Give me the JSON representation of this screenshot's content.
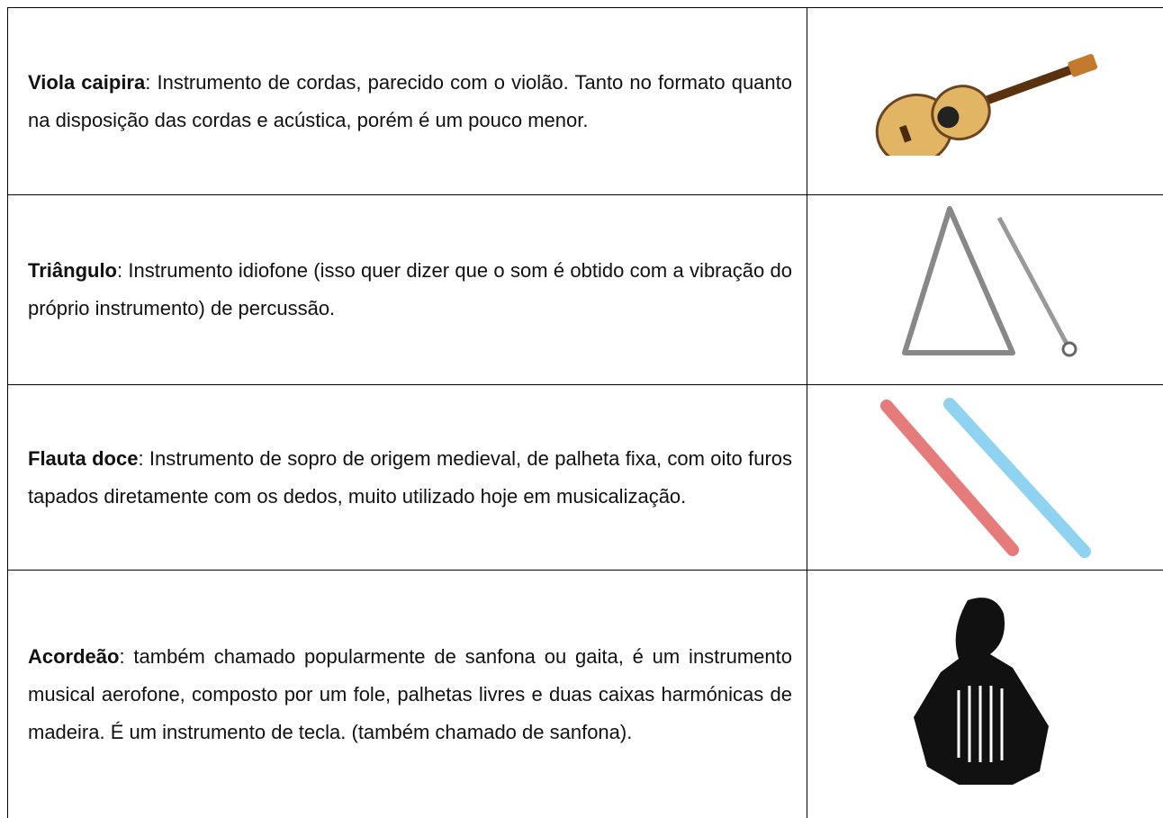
{
  "table": {
    "rows": [
      {
        "term": "Viola caipira",
        "description": ": Instrumento de cordas, parecido com o violão. Tanto no formato quanto na disposição das cordas e acústica, porém é um pouco menor."
      },
      {
        "term": "Triângulo",
        "description": ": Instrumento idiofone (isso quer dizer que o som é obtido com a vibração do próprio instrumento) de percussão."
      },
      {
        "term": "Flauta doce",
        "description": ": Instrumento de sopro de origem medieval, de palheta fixa, com oito furos tapados diretamente com os dedos, muito utilizado hoje em musicalização."
      },
      {
        "term": "Acordeão",
        "description": ": também chamado popularmente de sanfona ou gaita, é um instrumento musical aerofone, composto por um fole, palhetas livres e duas caixas harmónicas de madeira. É um instrumento de tecla. (também chamado de sanfona)."
      }
    ]
  }
}
